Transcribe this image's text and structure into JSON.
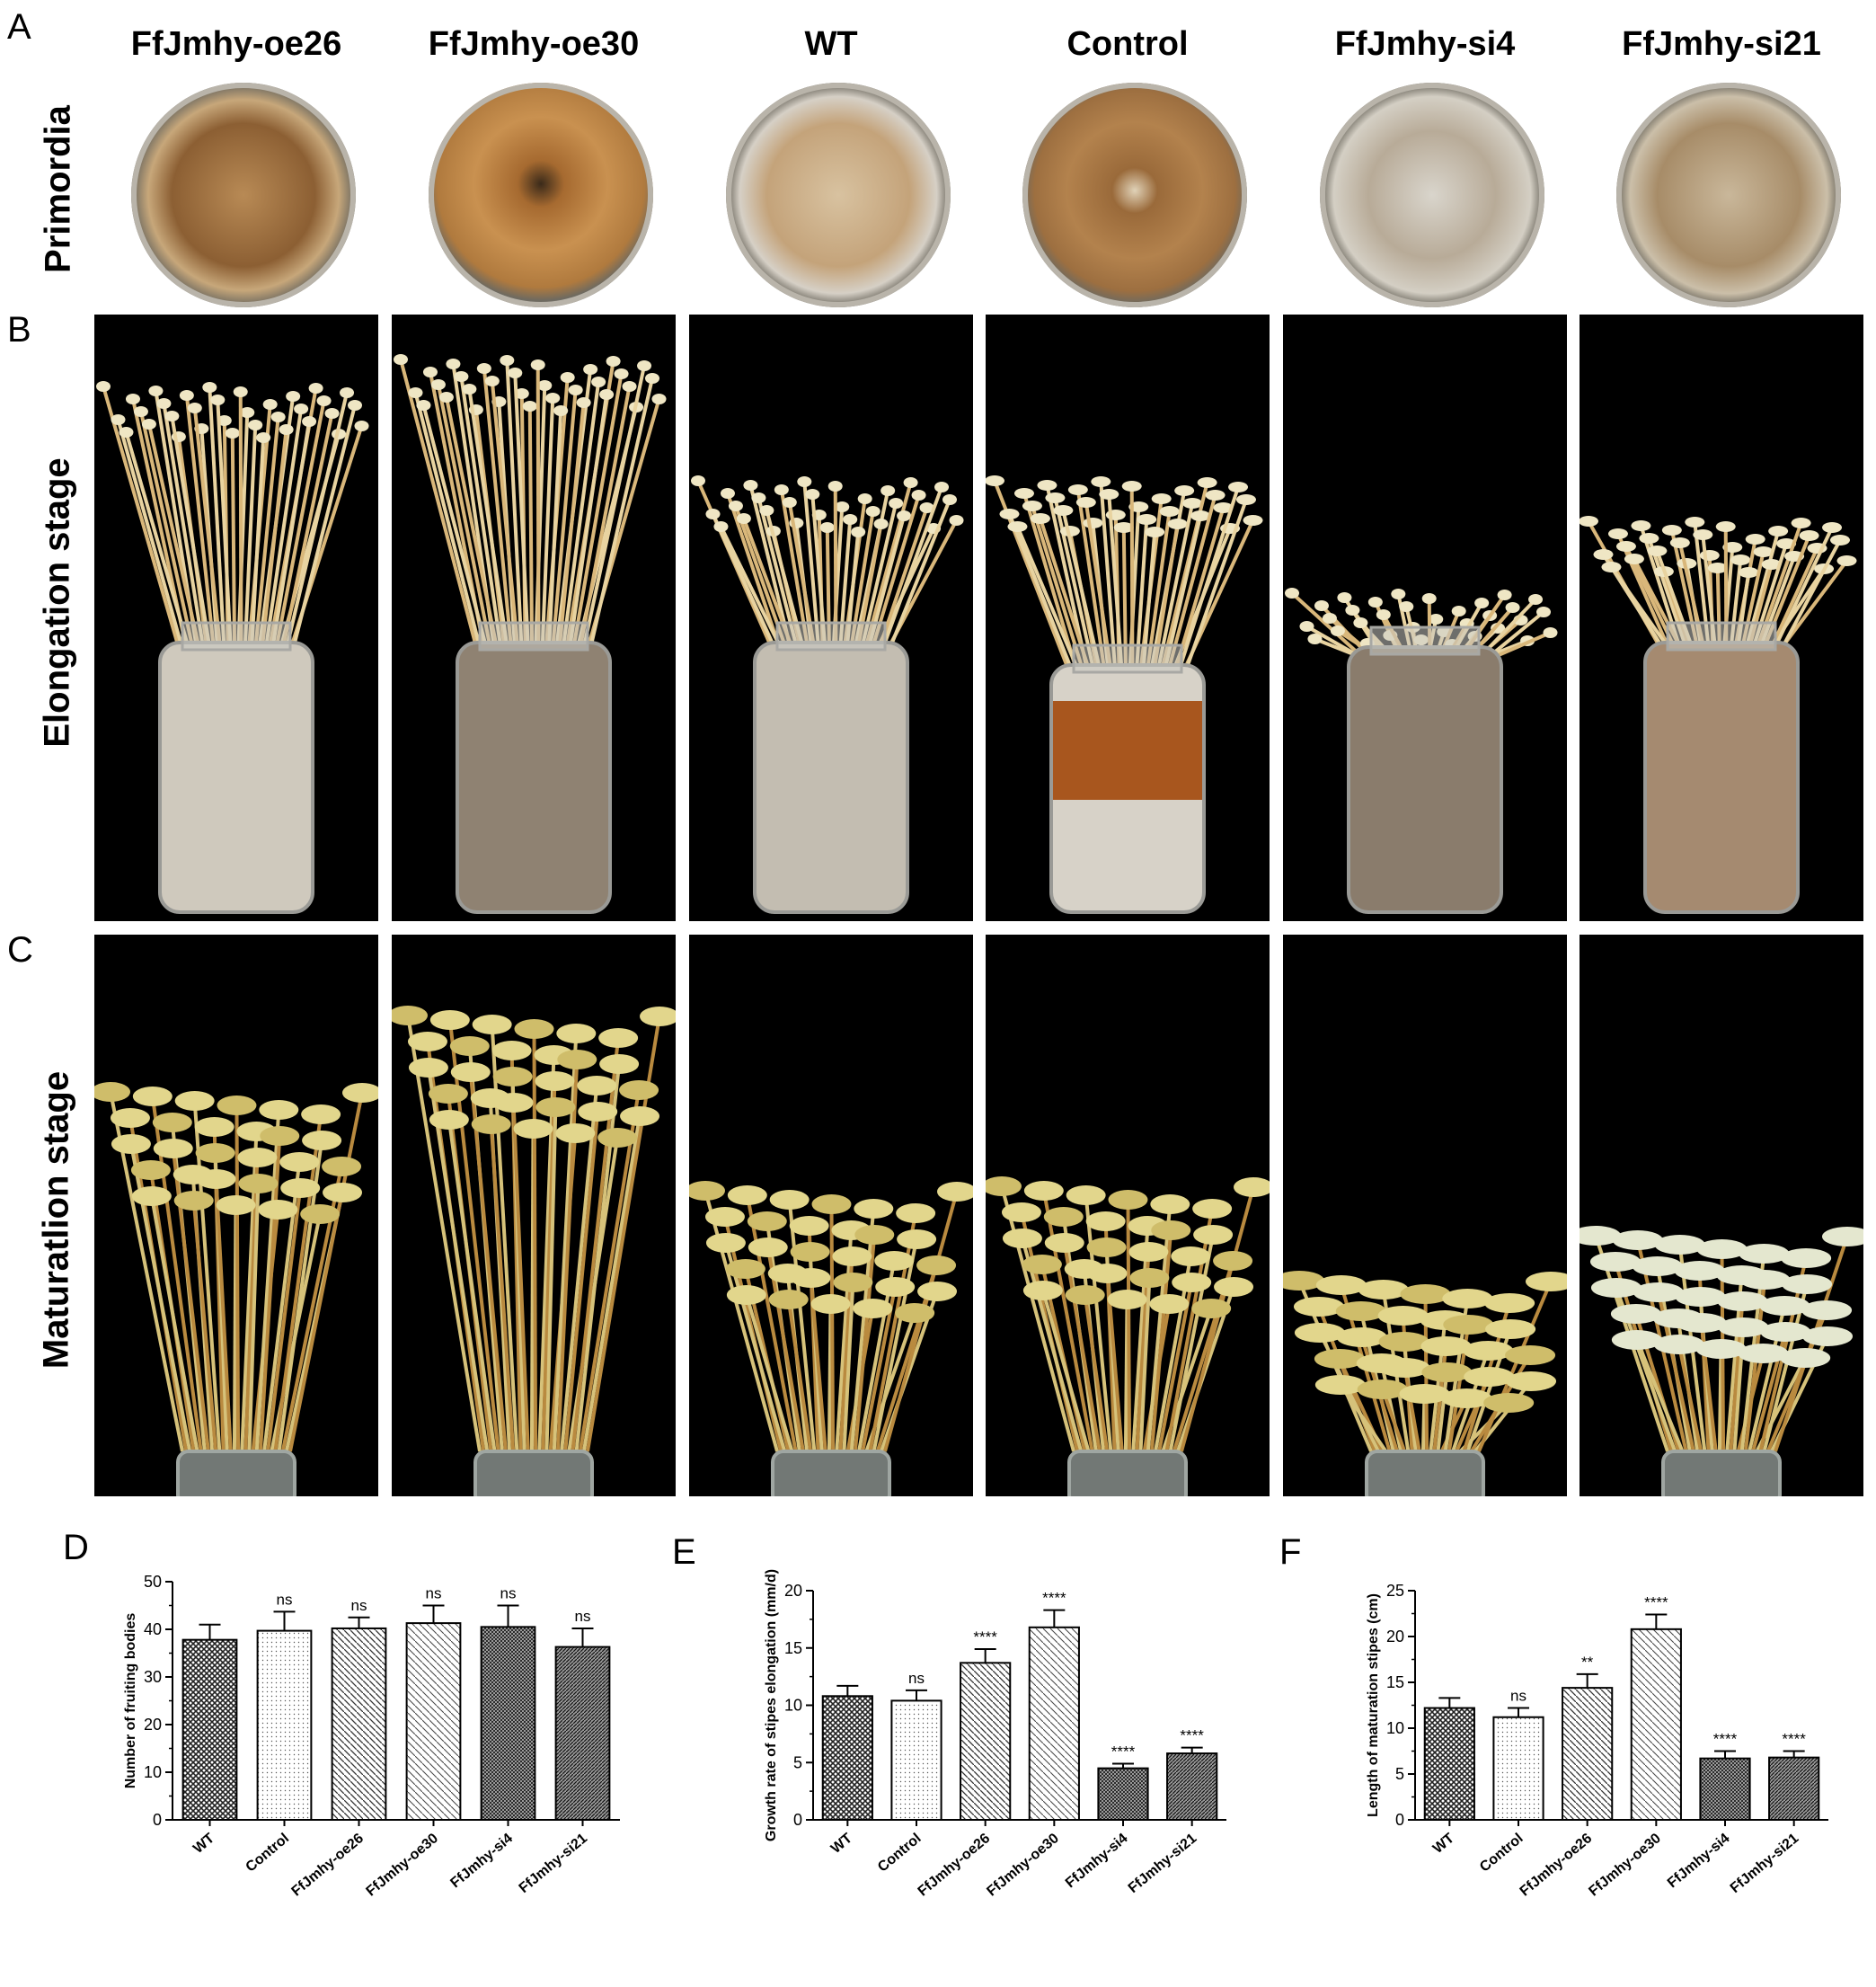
{
  "panels": {
    "A": "A",
    "B": "B",
    "C": "C",
    "D": "D",
    "E": "E",
    "F": "F"
  },
  "columns": [
    "FfJmhy-oe26",
    "FfJmhy-oe30",
    "WT",
    "Control",
    "FfJmhy-si4",
    "FfJmhy-si21"
  ],
  "rows": {
    "primordia": "Primordia",
    "elongation": "Elongation stage",
    "maturation": "Maturatlion stage"
  },
  "colors": {
    "substrate_brown": "#9a6a3a",
    "mycelium_white": "#d8d3c8",
    "stipe_cream": "#e8d3a0",
    "cap_yellow": "#e0d58a",
    "photo_bg": "#000000"
  },
  "chart_data": [
    {
      "type": "bar",
      "panel": "D",
      "categories": [
        "WT",
        "Control",
        "FfJmhy-oe26",
        "FfJmhy-oe30",
        "FfJmhy-si4",
        "FfJmhy-si21"
      ],
      "values": [
        37.8,
        39.7,
        40.2,
        41.3,
        40.5,
        36.3
      ],
      "errors": [
        3.2,
        4.0,
        2.3,
        3.7,
        4.5,
        3.9
      ],
      "significance": [
        "",
        "ns",
        "ns",
        "ns",
        "ns",
        "ns"
      ],
      "ylabel": "Number of fruiting bodies",
      "ylim": [
        0,
        50
      ],
      "yticks": [
        0,
        10,
        20,
        30,
        40,
        50
      ]
    },
    {
      "type": "bar",
      "panel": "E",
      "categories": [
        "WT",
        "Control",
        "FfJmhy-oe26",
        "FfJmhy-oe30",
        "FfJmhy-si4",
        "FfJmhy-si21"
      ],
      "values": [
        10.8,
        10.4,
        13.7,
        16.8,
        4.5,
        5.8
      ],
      "errors": [
        0.9,
        0.9,
        1.2,
        1.5,
        0.4,
        0.5
      ],
      "significance": [
        "",
        "ns",
        "****",
        "****",
        "****",
        "****"
      ],
      "ylabel": "Growth rate of stipes elongation (mm/d)",
      "ylim": [
        0,
        20
      ],
      "yticks": [
        0,
        5,
        10,
        15,
        20
      ]
    },
    {
      "type": "bar",
      "panel": "F",
      "categories": [
        "WT",
        "Control",
        "FfJmhy-oe26",
        "FfJmhy-oe30",
        "FfJmhy-si4",
        "FfJmhy-si21"
      ],
      "values": [
        12.2,
        11.2,
        14.4,
        20.8,
        6.7,
        6.8
      ],
      "errors": [
        1.1,
        1.0,
        1.5,
        1.6,
        0.8,
        0.7
      ],
      "significance": [
        "",
        "ns",
        "**",
        "****",
        "****",
        "****"
      ],
      "ylabel": "Length of  maturation stipes  (cm)",
      "ylim": [
        0,
        25
      ],
      "yticks": [
        0,
        5,
        10,
        15,
        20,
        25
      ]
    }
  ]
}
